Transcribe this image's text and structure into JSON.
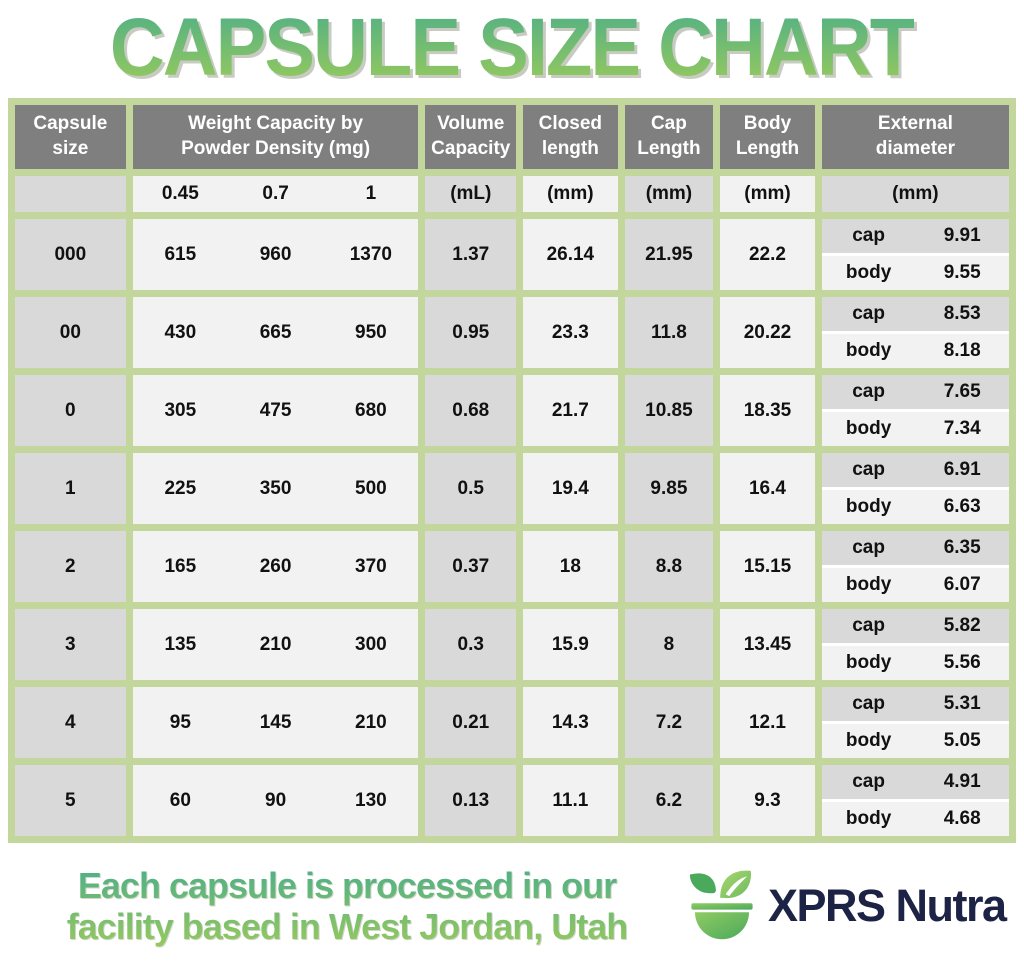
{
  "title": "CAPSULE SIZE CHART",
  "colors": {
    "green-border": "#c3d69b",
    "header-bg": "#7f7f7f",
    "gray-cell": "#d9d9d9",
    "light-cell": "#f2f2f2",
    "title-top": "#54b183",
    "title-bottom": "#96c95e",
    "brand-navy": "#1c2344"
  },
  "chart_data": {
    "type": "table",
    "title": "CAPSULE SIZE CHART",
    "columns": [
      {
        "label": "Capsule size",
        "unit": ""
      },
      {
        "label": "Weight Capacity by\nPowder Density (mg)",
        "subcolumns": [
          "0.45",
          "0.7",
          "1"
        ]
      },
      {
        "label": "Volume\nCapacity",
        "unit": "(mL)"
      },
      {
        "label": "Closed\nlength",
        "unit": "(mm)"
      },
      {
        "label": "Cap\nLength",
        "unit": "(mm)"
      },
      {
        "label": "Body\nLength",
        "unit": "(mm)"
      },
      {
        "label": "External\ndiameter",
        "unit": "(mm)"
      }
    ],
    "external_sublabels": {
      "cap": "cap",
      "body": "body"
    },
    "rows": [
      {
        "size": "000",
        "weight": [
          "615",
          "960",
          "1370"
        ],
        "volume_ml": "1.37",
        "closed_mm": "26.14",
        "cap_mm": "21.95",
        "body_mm": "22.2",
        "external": {
          "cap": "9.91",
          "body": "9.55"
        }
      },
      {
        "size": "00",
        "weight": [
          "430",
          "665",
          "950"
        ],
        "volume_ml": "0.95",
        "closed_mm": "23.3",
        "cap_mm": "11.8",
        "body_mm": "20.22",
        "external": {
          "cap": "8.53",
          "body": "8.18"
        }
      },
      {
        "size": "0",
        "weight": [
          "305",
          "475",
          "680"
        ],
        "volume_ml": "0.68",
        "closed_mm": "21.7",
        "cap_mm": "10.85",
        "body_mm": "18.35",
        "external": {
          "cap": "7.65",
          "body": "7.34"
        }
      },
      {
        "size": "1",
        "weight": [
          "225",
          "350",
          "500"
        ],
        "volume_ml": "0.5",
        "closed_mm": "19.4",
        "cap_mm": "9.85",
        "body_mm": "16.4",
        "external": {
          "cap": "6.91",
          "body": "6.63"
        }
      },
      {
        "size": "2",
        "weight": [
          "165",
          "260",
          "370"
        ],
        "volume_ml": "0.37",
        "closed_mm": "18",
        "cap_mm": "8.8",
        "body_mm": "15.15",
        "external": {
          "cap": "6.35",
          "body": "6.07"
        }
      },
      {
        "size": "3",
        "weight": [
          "135",
          "210",
          "300"
        ],
        "volume_ml": "0.3",
        "closed_mm": "15.9",
        "cap_mm": "8",
        "body_mm": "13.45",
        "external": {
          "cap": "5.82",
          "body": "5.56"
        }
      },
      {
        "size": "4",
        "weight": [
          "95",
          "145",
          "210"
        ],
        "volume_ml": "0.21",
        "closed_mm": "14.3",
        "cap_mm": "7.2",
        "body_mm": "12.1",
        "external": {
          "cap": "5.31",
          "body": "5.05"
        }
      },
      {
        "size": "5",
        "weight": [
          "60",
          "90",
          "130"
        ],
        "volume_ml": "0.13",
        "closed_mm": "11.1",
        "cap_mm": "6.2",
        "body_mm": "9.3",
        "external": {
          "cap": "4.91",
          "body": "4.68"
        }
      }
    ]
  },
  "footer": {
    "line1": "Each capsule is processed in our",
    "line2": "facility based in West Jordan, Utah",
    "brand": "XPRS Nutra"
  }
}
